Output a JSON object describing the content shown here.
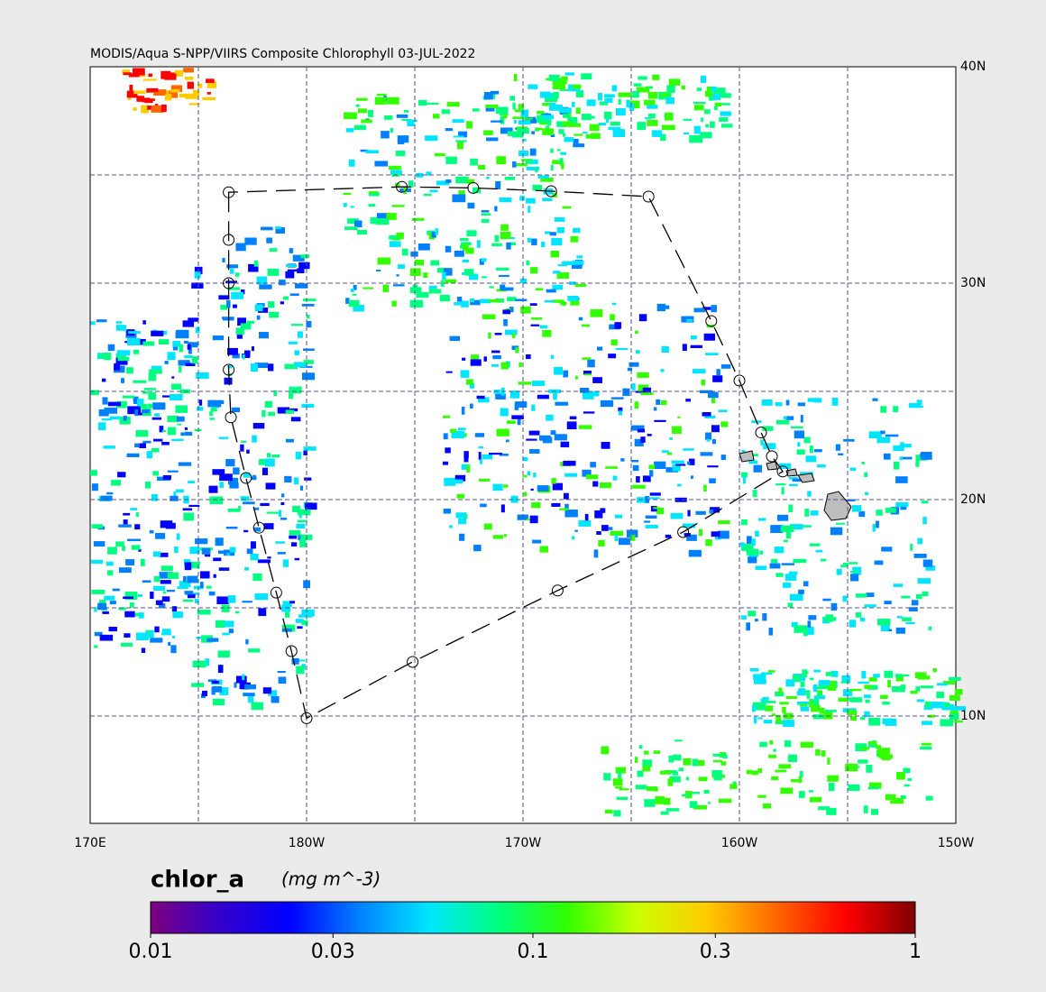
{
  "map": {
    "title": "MODIS/Aqua S-NPP/VIIRS Composite Chlorophyll 03-JUL-2022",
    "xlim": [
      170,
      210
    ],
    "ylim": [
      5.04,
      40
    ],
    "xticks": [
      {
        "value": 170,
        "label": "170E"
      },
      {
        "value": 180,
        "label": "180W"
      },
      {
        "value": 190,
        "label": "170W"
      },
      {
        "value": 200,
        "label": "160W"
      },
      {
        "value": 210,
        "label": "150W"
      }
    ],
    "yticks": [
      {
        "value": 10,
        "label": "10N"
      },
      {
        "value": 20,
        "label": "20N"
      },
      {
        "value": 30,
        "label": "30N"
      },
      {
        "value": 40,
        "label": "40N"
      }
    ],
    "grid_lons": [
      175,
      180,
      185,
      190,
      195,
      200,
      205
    ],
    "grid_lats": [
      10,
      15,
      20,
      25,
      30,
      35
    ],
    "grid_color": "#555588",
    "track": {
      "lon": [
        176.4,
        176.4,
        176.4,
        176.4,
        176.5,
        177.2,
        177.8,
        178.6,
        179.3,
        180.0,
        184.9,
        191.6,
        197.4,
        202.0,
        201.5,
        201.0,
        200.0,
        198.7,
        195.8,
        191.3,
        187.7,
        184.4
      ],
      "lat": [
        34.2,
        32.0,
        30.0,
        26.0,
        23.8,
        21.0,
        18.7,
        15.7,
        13.0,
        9.9,
        12.5,
        15.8,
        18.5,
        21.3,
        22.0,
        23.1,
        25.5,
        28.25,
        34.0,
        34.25,
        34.4,
        34.45
      ]
    },
    "colorbar": {
      "label": "chlor_a",
      "units": "(mg m^-3)",
      "scale": "log",
      "lim": [
        0.01,
        1
      ],
      "ticks": [
        0.01,
        0.03,
        0.1,
        0.3,
        1
      ],
      "colors": [
        "#7f007f",
        "#3300cc",
        "#0000ff",
        "#0080ff",
        "#00e5ff",
        "#00ff80",
        "#33ff00",
        "#ccff00",
        "#ffcc00",
        "#ff6600",
        "#ff0000",
        "#7f0000"
      ]
    }
  }
}
